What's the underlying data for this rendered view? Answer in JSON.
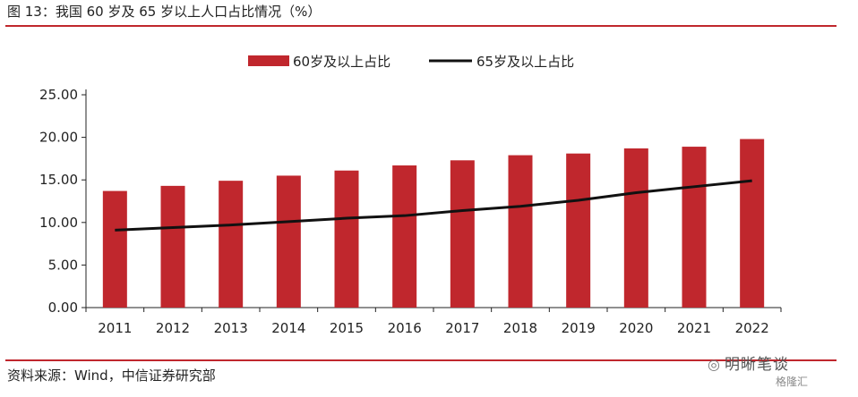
{
  "figure": {
    "title": "图 13：我国 60 岁及 65 岁以上人口占比情况（%）",
    "source": "资料来源：Wind，中信证券研究部",
    "watermark": "明晰笔谈",
    "watermark_icon": "wechat-icon",
    "watermark_logo": "格隆汇"
  },
  "colors": {
    "bar": "#c0272d",
    "line": "#111111",
    "rule": "#c0272d",
    "axis": "#222222"
  },
  "chart_data": {
    "type": "bar",
    "title": "",
    "xlabel": "",
    "ylabel": "",
    "categories": [
      "2011",
      "2012",
      "2013",
      "2014",
      "2015",
      "2016",
      "2017",
      "2018",
      "2019",
      "2020",
      "2021",
      "2022"
    ],
    "series": [
      {
        "name": "60岁及以上占比",
        "type": "bar",
        "values": [
          13.7,
          14.3,
          14.9,
          15.5,
          16.1,
          16.7,
          17.3,
          17.9,
          18.1,
          18.7,
          18.9,
          19.8
        ]
      },
      {
        "name": "65岁及以上占比",
        "type": "line",
        "values": [
          9.1,
          9.4,
          9.7,
          10.1,
          10.5,
          10.8,
          11.4,
          11.9,
          12.6,
          13.5,
          14.2,
          14.9
        ]
      }
    ],
    "ylim": [
      0,
      25
    ],
    "yticks": [
      "0.00",
      "5.00",
      "10.00",
      "15.00",
      "20.00",
      "25.00"
    ],
    "legend_position": "top-center",
    "grid": false
  }
}
